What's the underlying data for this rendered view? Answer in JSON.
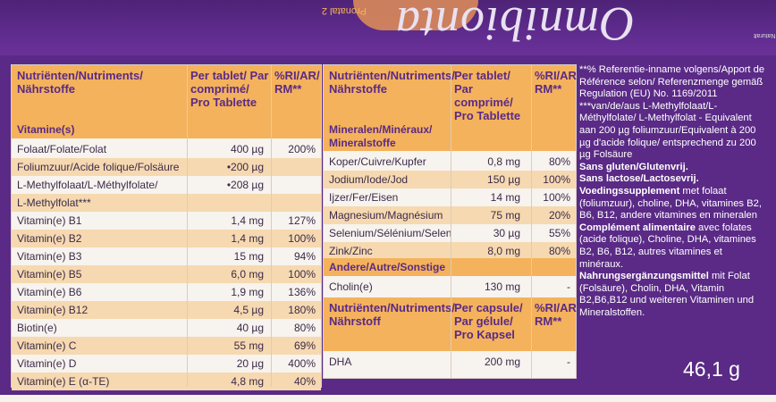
{
  "brand": {
    "name": "Omnibionta",
    "sub": "Pronatal 2",
    "small_tag": "Naturalt"
  },
  "left": {
    "headers": {
      "name": "Nutriënten/Nutriments/ Nährstoffe",
      "per": "Per tablet/ Par comprimé/ Pro Tablette",
      "ri": "%RI/AR/ RM**"
    },
    "section": "Vitamine(s)",
    "rows": [
      {
        "n": "Folaat/Folate/Folat",
        "v": "400 µg",
        "r": "200%"
      },
      {
        "n": "Foliumzuur/Acide folique/Folsäure",
        "v": "•200 µg",
        "r": ""
      },
      {
        "n": "L-Methylfolaat/L-Méthylfolate/",
        "v": "•208 µg",
        "r": ""
      },
      {
        "n": "L-Methylfolat***",
        "v": "",
        "r": ""
      },
      {
        "n": "Vitamin(e) B1",
        "v": "1,4 mg",
        "r": "127%"
      },
      {
        "n": "Vitamin(e) B2",
        "v": "1,4 mg",
        "r": "100%"
      },
      {
        "n": "Vitamin(e) B3",
        "v": "15 mg",
        "r": "94%"
      },
      {
        "n": "Vitamin(e) B5",
        "v": "6,0 mg",
        "r": "100%"
      },
      {
        "n": "Vitamin(e) B6",
        "v": "1,9 mg",
        "r": "136%"
      },
      {
        "n": "Vitamin(e) B12",
        "v": "4,5 µg",
        "r": "180%"
      },
      {
        "n": "Biotin(e)",
        "v": "40 µg",
        "r": "80%"
      },
      {
        "n": "Vitamin(e) C",
        "v": "55 mg",
        "r": "69%"
      },
      {
        "n": "Vitamin(e) D",
        "v": "20 µg",
        "r": "400%"
      },
      {
        "n": "Vitamin(e) E (α-TE)",
        "v": "4,8 mg",
        "r": "40%"
      }
    ]
  },
  "mid": {
    "headers": {
      "name": "Nutriënten/Nutriments/ Nährstoffe",
      "per": "Per tablet/ Par comprimé/ Pro Tablette",
      "ri": "%RI/AR/ RM**"
    },
    "section1": "Mineralen/Minéraux/ Mineralstoffe",
    "minerals": [
      {
        "n": "Koper/Cuivre/Kupfer",
        "v": "0,8 mg",
        "r": "80%"
      },
      {
        "n": "Jodium/Iode/Jod",
        "v": "150 µg",
        "r": "100%"
      },
      {
        "n": "Ijzer/Fer/Eisen",
        "v": "14 mg",
        "r": "100%"
      },
      {
        "n": "Magnesium/Magnésium",
        "v": "75 mg",
        "r": "20%"
      },
      {
        "n": "Selenium/Sélénium/Selen",
        "v": "30 µg",
        "r": "55%"
      },
      {
        "n": "Zink/Zinc",
        "v": "8,0 mg",
        "r": "80%"
      }
    ],
    "section2": "Andere/Autre/Sonstige",
    "other": [
      {
        "n": "Cholin(e)",
        "v": "130 mg",
        "r": "-"
      }
    ],
    "headers2": {
      "name": "Nutriënten/Nutriments/ Nährstoff",
      "per": "Per capsule/ Par gélule/ Pro Kapsel",
      "ri": "%RI/AR/ RM**"
    },
    "capsule": [
      {
        "n": "DHA",
        "v": "200 mg",
        "r": "-"
      }
    ]
  },
  "notes": {
    "p1": "**% Referentie-inname volgens/Apport de Référence selon/ Referenzmenge gemäß Regulation (EU) No. 1169/2011",
    "p2": "***van/de/aus L-Methylfolaat/L-Méthylfolate/ L-Methylfolat - Equivalent aan 200 µg foliumzuur/Equivalent à 200 µg d'acide folique/ entsprechend zu 200 µg Folsäure",
    "b1": "Sans gluten/Glutenvrij.",
    "b2": "Sans lactose/Lactosevrij.",
    "b3": "Voedingssupplement",
    "t3": " met folaat (foliumzuur), choline, DHA, vitamines B2, B6, B12, andere vitamines en mineralen",
    "b4": "Complément alimentaire",
    "t4": " avec folates (acide folique), Choline, DHA, vitamines B2, B6, B12, autres vitamines et minéraux.",
    "b5": "Nahrungsergänzungsmittel",
    "t5": " mit Folat (Folsäure), Cholin, DHA, Vitamin B2,B6,B12 und weiteren Vitaminen und Mineralstoffen."
  },
  "weight": "46,1 g"
}
